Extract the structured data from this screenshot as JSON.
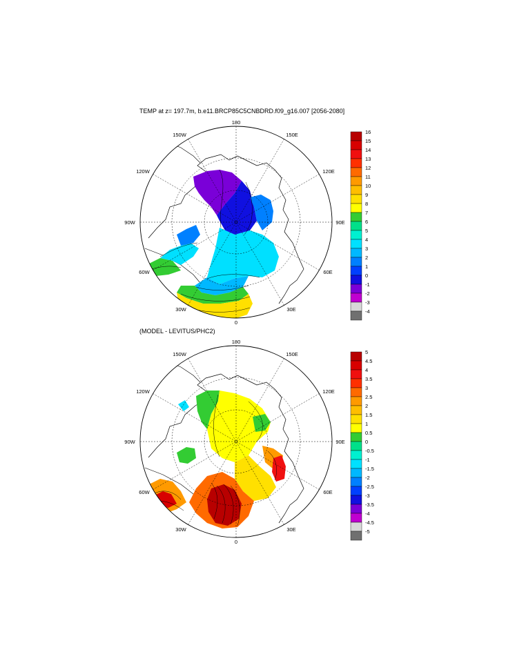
{
  "panels": [
    {
      "id": "top",
      "title": "TEMP at z= 197.7m, b.e11.BRCP85C5CNBDRD.f09_g16.007 [2056-2080]",
      "lon_labels": {
        "180": "180",
        "150W": "150W",
        "150E": "150E",
        "120W": "120W",
        "120E": "120E",
        "90W": "90W",
        "90E": "90E",
        "60W": "60W",
        "60E": "60E",
        "30W": "30W",
        "30E": "30E",
        "0": "0"
      },
      "colorbar": {
        "labels": [
          "16",
          "15",
          "14",
          "13",
          "12",
          "11",
          "10",
          "9",
          "8",
          "7",
          "6",
          "5",
          "4",
          "3",
          "2",
          "1",
          "0",
          "-1",
          "-2",
          "-3",
          "-4"
        ],
        "colors": [
          "#b80000",
          "#d80000",
          "#f01010",
          "#ff3000",
          "#ff6a00",
          "#ff9a00",
          "#ffbe00",
          "#ffe000",
          "#ffff00",
          "#33cc33",
          "#00e08a",
          "#00f0d0",
          "#00e0ff",
          "#00b8ff",
          "#0080ff",
          "#0040ff",
          "#1010e0",
          "#7a00d8",
          "#c000d0",
          "#d8d8d8",
          "#707070"
        ]
      }
    },
    {
      "id": "bottom",
      "title": "(MODEL - LEVITUS/PHC2)",
      "lon_labels": {
        "180": "180",
        "150W": "150W",
        "150E": "150E",
        "120W": "120W",
        "120E": "120E",
        "90W": "90W",
        "90E": "90E",
        "60W": "60W",
        "60E": "60E",
        "30W": "30W",
        "30E": "30E",
        "0": "0"
      },
      "colorbar": {
        "labels": [
          "5",
          "4.5",
          "4",
          "3.5",
          "3",
          "2.5",
          "2",
          "1.5",
          "1",
          "0.5",
          "0",
          "-0.5",
          "-1",
          "-1.5",
          "-2",
          "-2.5",
          "-3",
          "-3.5",
          "-4",
          "-4.5",
          "-5"
        ],
        "colors": [
          "#b80000",
          "#d80000",
          "#f01010",
          "#ff3000",
          "#ff6a00",
          "#ff9a00",
          "#ffbe00",
          "#ffe000",
          "#ffff00",
          "#33cc33",
          "#00e08a",
          "#00f0d0",
          "#00e0ff",
          "#00b8ff",
          "#0080ff",
          "#0040ff",
          "#1010e0",
          "#7a00d8",
          "#c000d0",
          "#d8d8d8",
          "#707070"
        ]
      }
    }
  ]
}
